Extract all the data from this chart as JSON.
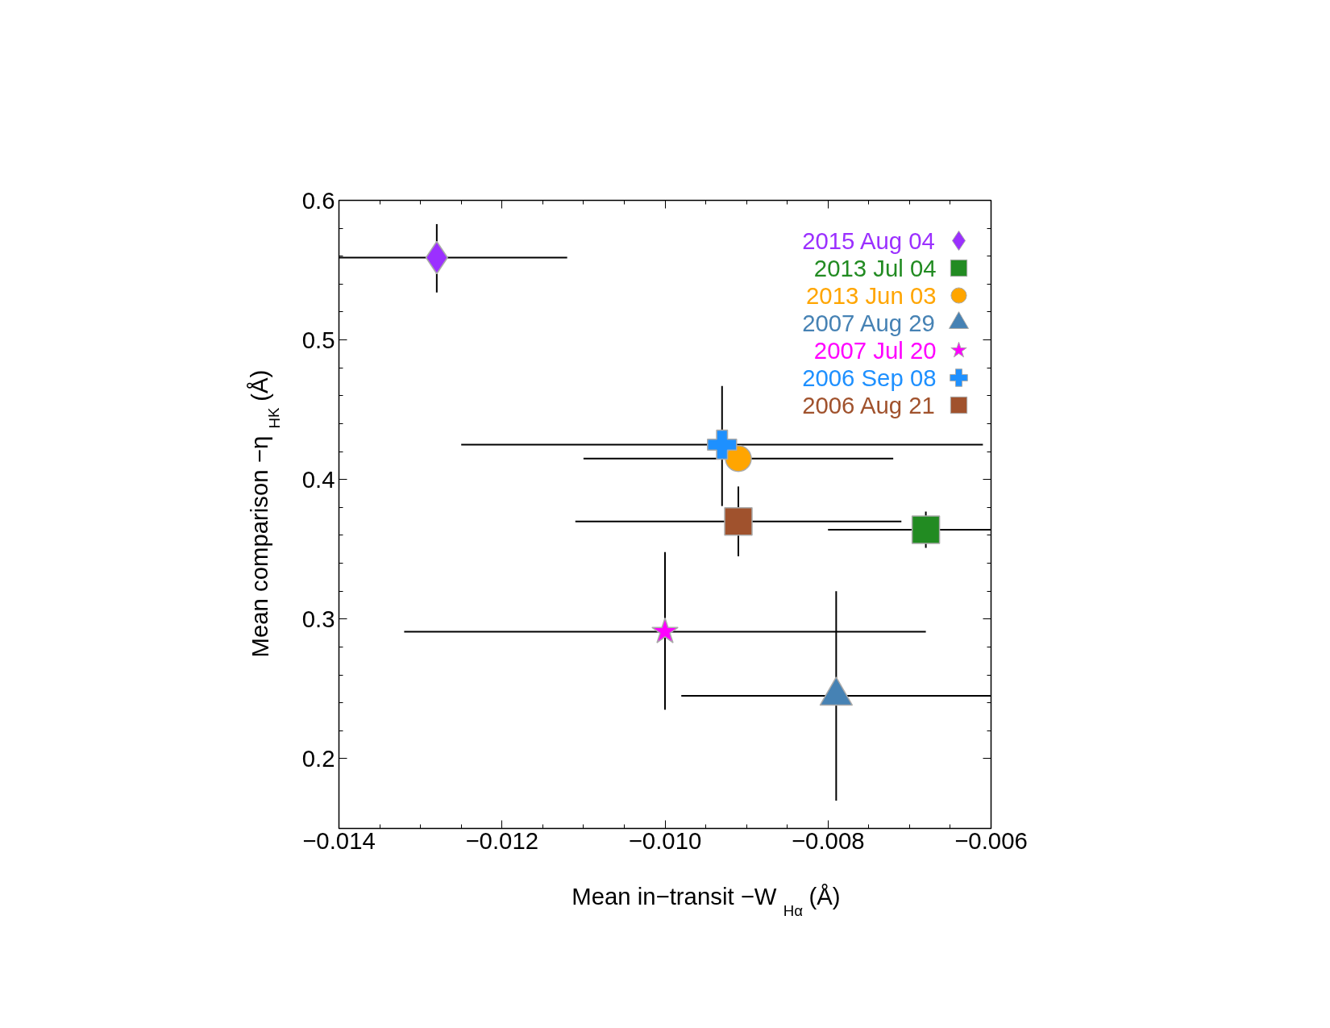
{
  "chart_data": {
    "type": "scatter",
    "xlabel": "Mean in−transit −W$_{Hα}$ (Å)",
    "ylabel": "Mean comparison −η$_{HK}$ (Å)",
    "xlim": [
      -0.014,
      -0.006
    ],
    "ylim": [
      0.15,
      0.6
    ],
    "xticks": [
      {
        "value": -0.014,
        "label": "−0.014"
      },
      {
        "value": -0.012,
        "label": "−0.012"
      },
      {
        "value": -0.01,
        "label": "−0.010"
      },
      {
        "value": -0.008,
        "label": "−0.008"
      },
      {
        "value": -0.006,
        "label": "−0.006"
      }
    ],
    "yticks": [
      0.2,
      0.3,
      0.4,
      0.5,
      0.6
    ],
    "grid": false,
    "legend": "top right",
    "series": [
      {
        "name": "2015 Aug 04",
        "color": "#9b30ff",
        "marker": "diamond",
        "x": [
          -0.0128
        ],
        "values": [
          0.559
        ],
        "xerrors": [
          [
            -0.014,
            -0.0112
          ]
        ],
        "errors": [
          [
            0.534,
            0.583
          ]
        ]
      },
      {
        "name": "2013 Jul 04",
        "color": "#228b22",
        "marker": "square",
        "x": [
          -0.0068
        ],
        "values": [
          0.364
        ],
        "xerrors": [
          [
            -0.008,
            -0.006
          ]
        ],
        "errors": [
          [
            0.351,
            0.377
          ]
        ]
      },
      {
        "name": "2013 Jun 03",
        "color": "#ffa500",
        "marker": "circle",
        "x": [
          -0.0091
        ],
        "values": [
          0.415
        ],
        "xerrors": [
          [
            -0.011,
            -0.0072
          ]
        ],
        "errors": [
          null
        ]
      },
      {
        "name": "2007 Aug 29",
        "color": "#4682b4",
        "marker": "triangle",
        "x": [
          -0.0079
        ],
        "values": [
          0.245
        ],
        "xerrors": [
          [
            -0.0098,
            -0.006
          ]
        ],
        "errors": [
          [
            0.17,
            0.32
          ]
        ]
      },
      {
        "name": "2007 Jul 20",
        "color": "#ff00ff",
        "marker": "star",
        "x": [
          -0.01
        ],
        "values": [
          0.291
        ],
        "xerrors": [
          [
            -0.0132,
            -0.0068
          ]
        ],
        "errors": [
          [
            0.235,
            0.348
          ]
        ]
      },
      {
        "name": "2006 Sep 08",
        "color": "#1e90ff",
        "marker": "cross",
        "x": [
          -0.0093
        ],
        "values": [
          0.425
        ],
        "xerrors": [
          [
            -0.0125,
            -0.0061
          ]
        ],
        "errors": [
          [
            0.381,
            0.467
          ]
        ]
      },
      {
        "name": "2006 Aug 21",
        "color": "#a0522d",
        "marker": "square",
        "x": [
          -0.0091
        ],
        "values": [
          0.37
        ],
        "xerrors": [
          [
            -0.0111,
            -0.0071
          ]
        ],
        "errors": [
          [
            0.345,
            0.395
          ]
        ]
      }
    ]
  }
}
